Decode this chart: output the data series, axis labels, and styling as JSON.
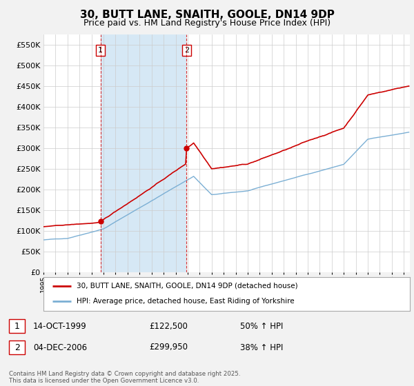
{
  "title": "30, BUTT LANE, SNAITH, GOOLE, DN14 9DP",
  "subtitle": "Price paid vs. HM Land Registry's House Price Index (HPI)",
  "ylim": [
    0,
    575000
  ],
  "yticks": [
    0,
    50000,
    100000,
    150000,
    200000,
    250000,
    300000,
    350000,
    400000,
    450000,
    500000,
    550000
  ],
  "title_fontsize": 11,
  "subtitle_fontsize": 9,
  "legend_label_red": "30, BUTT LANE, SNAITH, GOOLE, DN14 9DP (detached house)",
  "legend_label_blue": "HPI: Average price, detached house, East Riding of Yorkshire",
  "transaction1_date": "14-OCT-1999",
  "transaction1_price": "£122,500",
  "transaction1_hpi": "50% ↑ HPI",
  "transaction2_date": "04-DEC-2006",
  "transaction2_price": "£299,950",
  "transaction2_hpi": "38% ↑ HPI",
  "footer": "Contains HM Land Registry data © Crown copyright and database right 2025.\nThis data is licensed under the Open Government Licence v3.0.",
  "red_color": "#cc0000",
  "blue_color": "#7bafd4",
  "shade_color": "#d6e8f5",
  "vline_color": "#cc0000",
  "background_color": "#f2f2f2",
  "plot_bg_color": "#ffffff",
  "grid_color": "#cccccc",
  "sale1_year": 1999,
  "sale1_month": 10,
  "sale1_price": 122500,
  "sale2_year": 2006,
  "sale2_month": 12,
  "sale2_price": 299950
}
